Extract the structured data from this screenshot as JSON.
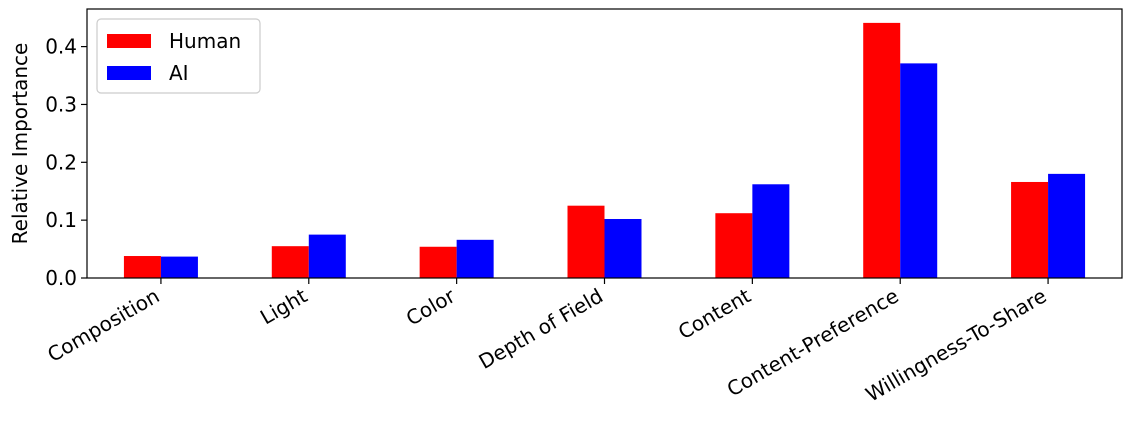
{
  "chart_data": {
    "type": "bar",
    "categories": [
      "Composition",
      "Light",
      "Color",
      "Depth of Field",
      "Content",
      "Content-Preference",
      "Willingness-To-Share"
    ],
    "series": [
      {
        "name": "Human",
        "color": "#ff0000",
        "values": [
          0.038,
          0.055,
          0.054,
          0.125,
          0.112,
          0.441,
          0.166
        ]
      },
      {
        "name": "AI",
        "color": "#0000ff",
        "values": [
          0.037,
          0.075,
          0.066,
          0.102,
          0.162,
          0.371,
          0.18
        ]
      }
    ],
    "title": "",
    "xlabel": "",
    "ylabel": "Relative Importance",
    "ylim": [
      0,
      0.465
    ],
    "yticks": [
      "0.0",
      "0.1",
      "0.2",
      "0.3",
      "0.4"
    ],
    "legend_placement": "top-left",
    "grid": false
  }
}
